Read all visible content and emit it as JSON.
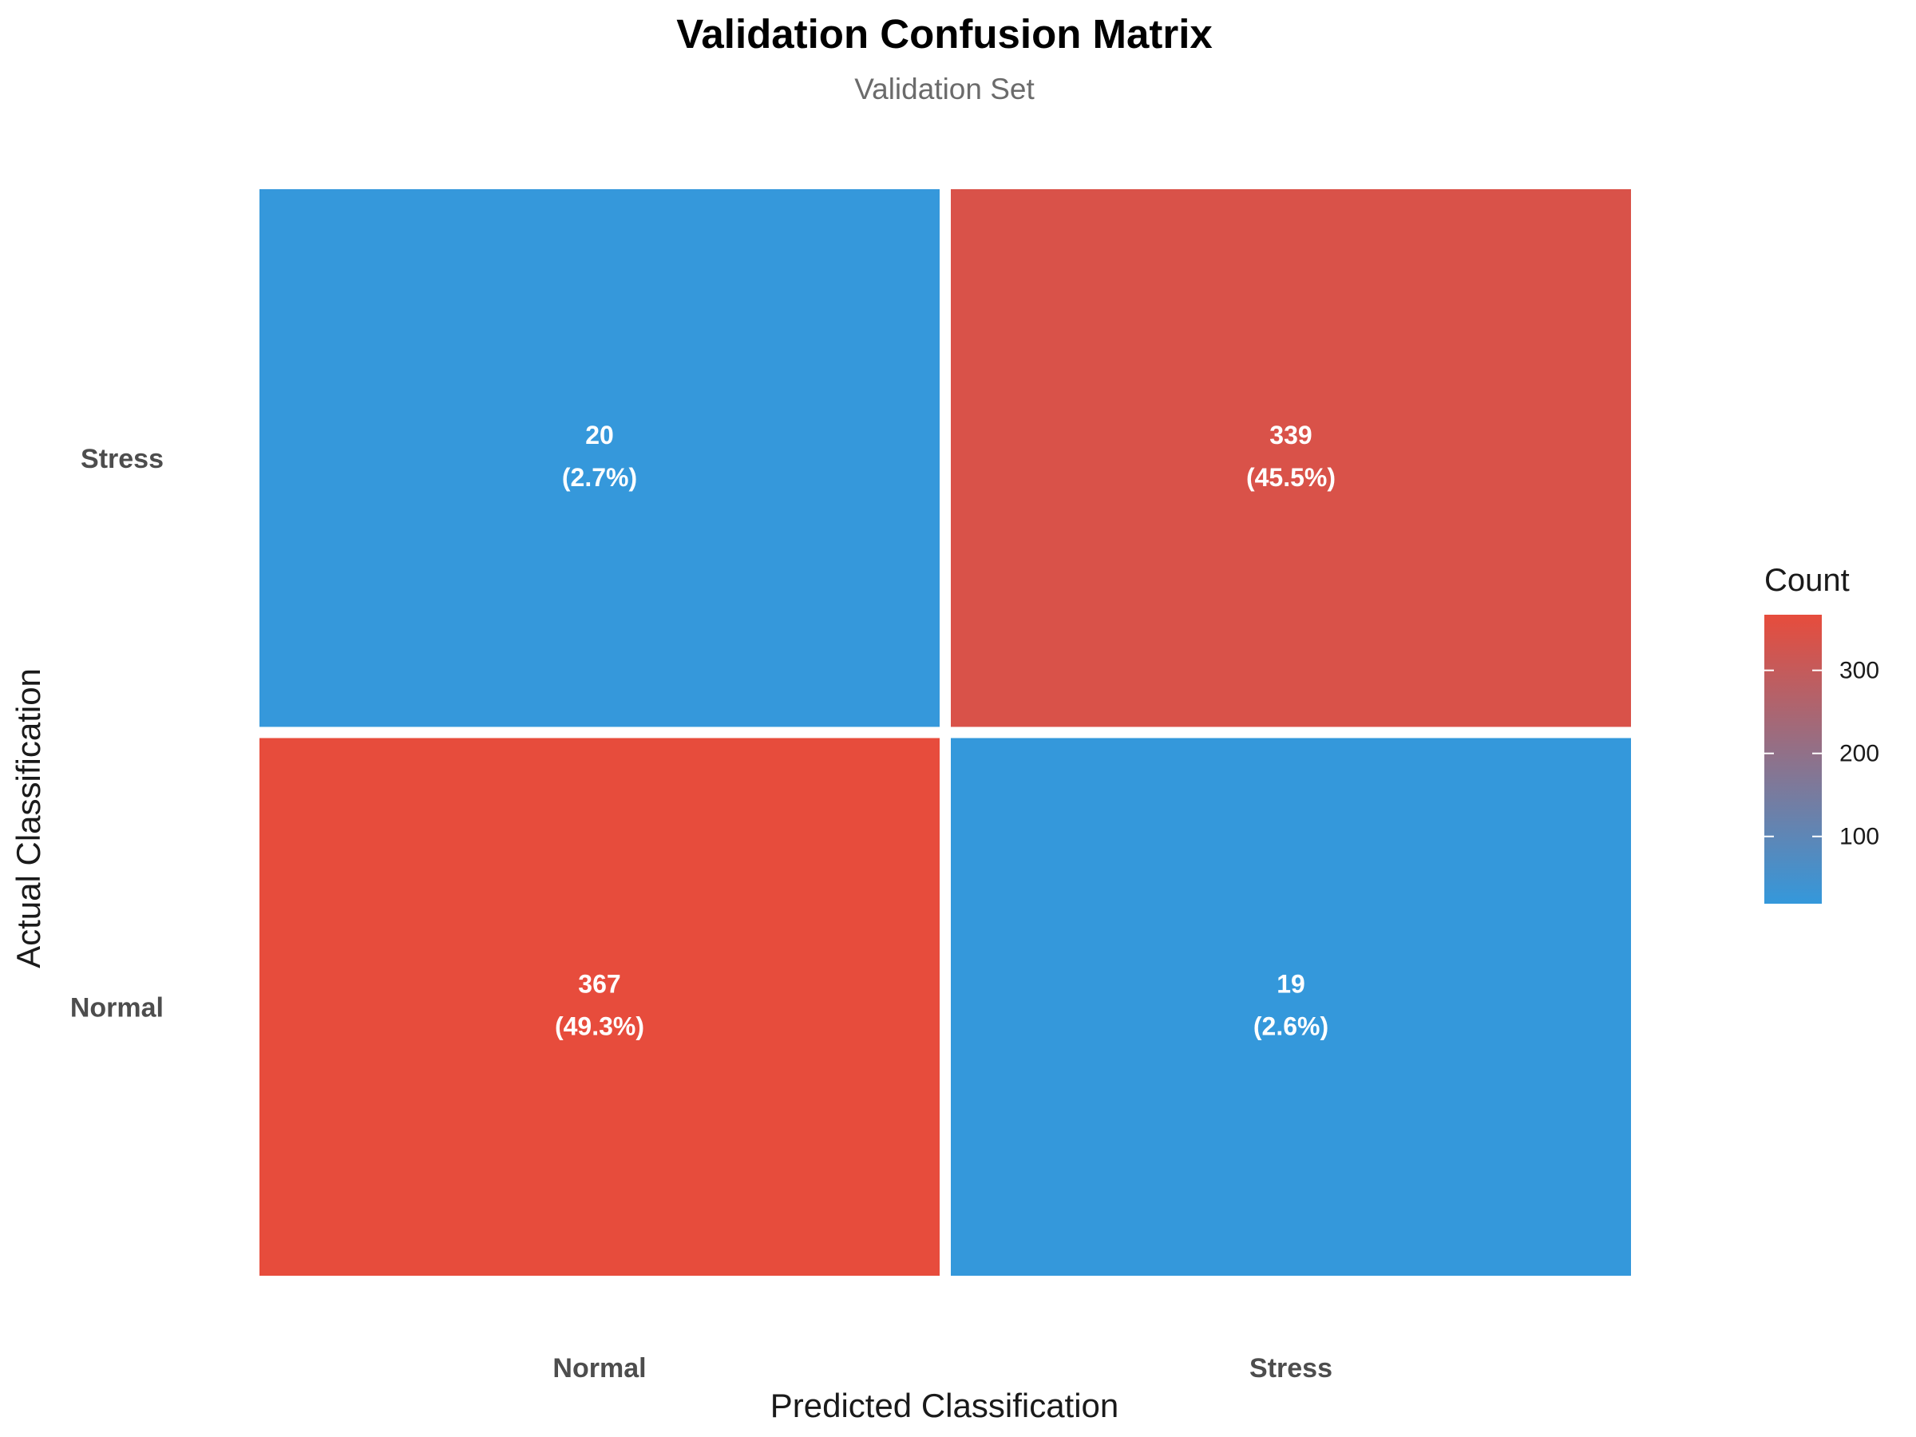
{
  "chart_data": {
    "type": "heatmap",
    "title": "Validation Confusion Matrix",
    "subtitle": "Validation Set",
    "xlabel": "Predicted Classification",
    "ylabel": "Actual Classification",
    "x_categories": [
      "Normal",
      "Stress"
    ],
    "y_categories": [
      "Normal",
      "Stress"
    ],
    "cells": [
      {
        "actual": "Stress",
        "predicted": "Normal",
        "count": 20,
        "label": "20",
        "pct_label": "(2.7%)"
      },
      {
        "actual": "Stress",
        "predicted": "Stress",
        "count": 339,
        "label": "339",
        "pct_label": "(45.5%)"
      },
      {
        "actual": "Normal",
        "predicted": "Normal",
        "count": 367,
        "label": "367",
        "pct_label": "(49.3%)"
      },
      {
        "actual": "Normal",
        "predicted": "Stress",
        "count": 19,
        "label": "19",
        "pct_label": "(2.6%)"
      }
    ],
    "color_scale": {
      "low": "#3498db",
      "high": "#e74c3c",
      "min": 19,
      "max": 367
    },
    "legend": {
      "title": "Count",
      "ticks": [
        100,
        200,
        300
      ],
      "placement": "right"
    },
    "grid": false
  }
}
